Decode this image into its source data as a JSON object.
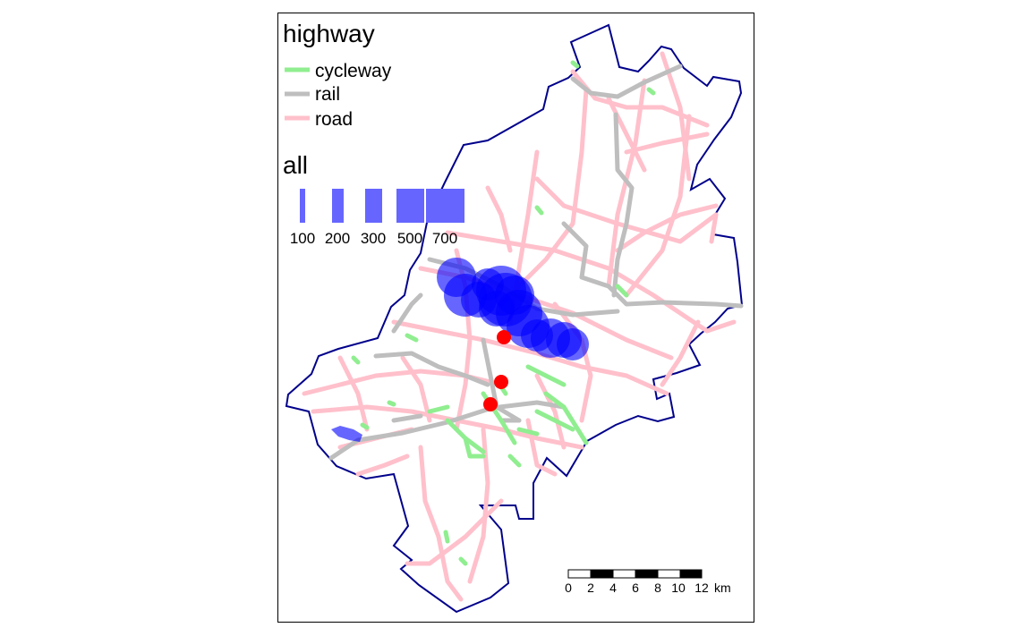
{
  "legend": {
    "highway": {
      "title": "highway",
      "items": [
        {
          "label": "cycleway",
          "color": "#90ee90"
        },
        {
          "label": "rail",
          "color": "#bebebe"
        },
        {
          "label": "road",
          "color": "#ffc0cb"
        }
      ]
    },
    "all": {
      "title": "all",
      "color": "#6666ff",
      "items": [
        {
          "label": "100",
          "value": 100
        },
        {
          "label": "200",
          "value": 200
        },
        {
          "label": "300",
          "value": 300
        },
        {
          "label": "500",
          "value": 500
        },
        {
          "label": "700",
          "value": 700
        }
      ]
    }
  },
  "scale_bar": {
    "ticks": [
      "0",
      "2",
      "4",
      "6",
      "8",
      "10",
      "12"
    ],
    "unit": "km"
  },
  "colors": {
    "boundary": "#00008b",
    "cycleway": "#90ee90",
    "rail": "#bebebe",
    "road": "#ffc0cb",
    "flow": "#0000ff",
    "point": "#ff0000"
  }
}
